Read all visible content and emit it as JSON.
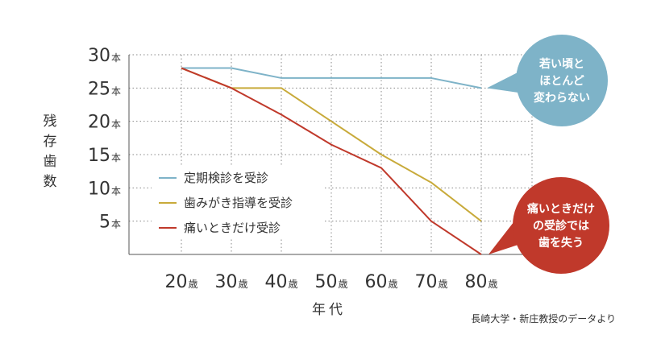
{
  "chart_data": {
    "type": "line",
    "categories": [
      "20",
      "30",
      "40",
      "50",
      "60",
      "70",
      "80"
    ],
    "x_unit": "歳",
    "y_unit": "本",
    "ylim": [
      0,
      30
    ],
    "yticks": [
      30,
      25,
      20,
      15,
      10,
      5
    ],
    "ylabel": "残存歯数",
    "xlabel": "年代",
    "grid": true,
    "legend_position": "bottom-left",
    "series": [
      {
        "name": "定期検診を受診",
        "color": "#7eb3c8",
        "values": [
          28,
          28,
          26.5,
          26.5,
          26.5,
          26.5,
          25
        ]
      },
      {
        "name": "歯みがき指導を受診",
        "color": "#c8aa3a",
        "values": [
          28,
          25,
          25,
          20,
          15,
          10.8,
          5
        ]
      },
      {
        "name": "痛いときだけ受診",
        "color": "#c0392b",
        "values": [
          28,
          25,
          21,
          16.5,
          13,
          5,
          0
        ]
      }
    ],
    "annotations": [
      {
        "lines": [
          "若い頃と",
          "ほとんど",
          "変わらない"
        ],
        "color": "#7eb3c8",
        "series": 0
      },
      {
        "lines": [
          "痛いときだけ",
          "の受診では",
          "歯を失う"
        ],
        "color": "#c0392b",
        "series": 2
      }
    ],
    "source": "長崎大学・新庄教授のデータより"
  }
}
